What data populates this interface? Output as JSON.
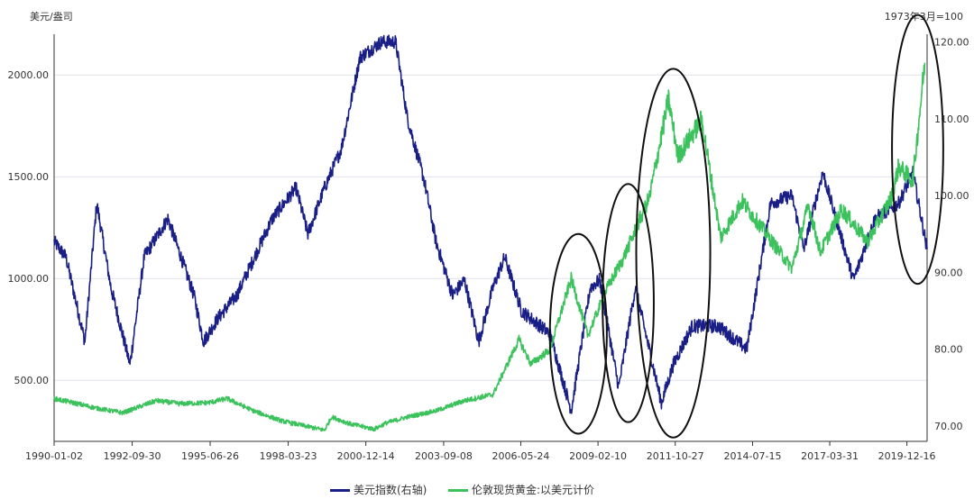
{
  "chart_data": {
    "type": "line",
    "left_axis_unit": "美元/盎司",
    "right_axis_unit": "1973年3月=100",
    "x_tick_labels": [
      "1990-01-02",
      "1992-09-30",
      "1995-06-26",
      "1998-03-23",
      "2000-12-14",
      "2003-09-08",
      "2006-05-24",
      "2009-02-10",
      "2011-10-27",
      "2014-07-15",
      "2017-03-31",
      "2019-12-16"
    ],
    "y_left_ticks": [
      "500.00",
      "1000.00",
      "1500.00",
      "2000.00"
    ],
    "y_left_range": [
      200,
      2200
    ],
    "y_right_ticks": [
      "70.00",
      "80.00",
      "90.00",
      "100.00",
      "110.00",
      "120.00"
    ],
    "y_right_range": [
      68,
      121
    ],
    "x_range": [
      "1990-01-02",
      "2020-09-01"
    ],
    "grid": "horizontal",
    "legend_position": "bottom",
    "series": [
      {
        "name": "美元指数(右轴)",
        "axis": "right",
        "color": "#1a1f87",
        "points": [
          [
            "1990-01-02",
            94
          ],
          [
            "1990-06-01",
            92
          ],
          [
            "1991-02-01",
            81
          ],
          [
            "1991-07-01",
            99
          ],
          [
            "1992-01-01",
            88
          ],
          [
            "1992-09-01",
            78
          ],
          [
            "1993-03-01",
            92
          ],
          [
            "1994-01-01",
            97
          ],
          [
            "1994-12-01",
            87
          ],
          [
            "1995-04-01",
            81
          ],
          [
            "1995-10-01",
            84
          ],
          [
            "1996-06-01",
            87
          ],
          [
            "1997-03-01",
            93
          ],
          [
            "1997-09-01",
            97
          ],
          [
            "1998-07-01",
            101
          ],
          [
            "1998-12-01",
            95
          ],
          [
            "1999-07-01",
            101
          ],
          [
            "2000-02-01",
            106
          ],
          [
            "2000-10-01",
            118
          ],
          [
            "2001-07-01",
            120
          ],
          [
            "2002-01-01",
            120
          ],
          [
            "2002-06-01",
            110
          ],
          [
            "2003-01-01",
            102
          ],
          [
            "2003-06-01",
            94
          ],
          [
            "2004-01-01",
            87
          ],
          [
            "2004-06-01",
            89
          ],
          [
            "2004-12-01",
            81
          ],
          [
            "2005-06-01",
            88
          ],
          [
            "2005-11-01",
            92
          ],
          [
            "2006-06-01",
            85
          ],
          [
            "2007-06-01",
            82
          ],
          [
            "2008-03-01",
            72
          ],
          [
            "2008-11-01",
            88
          ],
          [
            "2009-03-01",
            89
          ],
          [
            "2009-11-01",
            75
          ],
          [
            "2010-06-01",
            88
          ],
          [
            "2011-05-01",
            73
          ],
          [
            "2011-10-01",
            78
          ],
          [
            "2012-06-01",
            83
          ],
          [
            "2013-05-01",
            83
          ],
          [
            "2014-05-01",
            80
          ],
          [
            "2015-03-01",
            99
          ],
          [
            "2015-12-01",
            100
          ],
          [
            "2016-05-01",
            93
          ],
          [
            "2017-01-01",
            103
          ],
          [
            "2018-02-01",
            89
          ],
          [
            "2018-11-01",
            97
          ],
          [
            "2019-09-01",
            99
          ],
          [
            "2020-03-01",
            103
          ],
          [
            "2020-09-01",
            93
          ]
        ]
      },
      {
        "name": "伦敦现货黄金:以美元计价",
        "axis": "left",
        "color": "#3cc25c",
        "points": [
          [
            "1990-01-02",
            410
          ],
          [
            "1990-09-01",
            390
          ],
          [
            "1991-06-01",
            365
          ],
          [
            "1992-06-01",
            340
          ],
          [
            "1993-08-01",
            400
          ],
          [
            "1994-06-01",
            385
          ],
          [
            "1995-06-01",
            390
          ],
          [
            "1996-02-01",
            410
          ],
          [
            "1997-01-01",
            350
          ],
          [
            "1998-01-01",
            300
          ],
          [
            "1999-07-01",
            255
          ],
          [
            "1999-10-01",
            320
          ],
          [
            "2000-06-01",
            285
          ],
          [
            "2001-04-01",
            260
          ],
          [
            "2001-09-01",
            290
          ],
          [
            "2002-06-01",
            320
          ],
          [
            "2003-06-01",
            350
          ],
          [
            "2004-06-01",
            400
          ],
          [
            "2005-06-01",
            430
          ],
          [
            "2006-05-01",
            700
          ],
          [
            "2006-10-01",
            580
          ],
          [
            "2007-06-01",
            650
          ],
          [
            "2008-03-01",
            1000
          ],
          [
            "2008-10-01",
            720
          ],
          [
            "2009-06-01",
            950
          ],
          [
            "2010-01-01",
            1100
          ],
          [
            "2010-12-01",
            1400
          ],
          [
            "2011-08-01",
            1880
          ],
          [
            "2011-12-01",
            1600
          ],
          [
            "2012-10-01",
            1780
          ],
          [
            "2013-06-01",
            1200
          ],
          [
            "2014-03-01",
            1380
          ],
          [
            "2015-12-01",
            1050
          ],
          [
            "2016-07-01",
            1360
          ],
          [
            "2016-12-01",
            1130
          ],
          [
            "2017-09-01",
            1340
          ],
          [
            "2018-08-01",
            1180
          ],
          [
            "2019-06-01",
            1400
          ],
          [
            "2019-09-01",
            1550
          ],
          [
            "2020-03-01",
            1480
          ],
          [
            "2020-08-01",
            2060
          ]
        ]
      }
    ],
    "annotations": [
      {
        "type": "ellipse",
        "cx_date": "2008-06-01",
        "cx_value": 82,
        "rx_years": 1.0,
        "ry_value": 13
      },
      {
        "type": "ellipse",
        "cx_date": "2010-03-01",
        "cx_value": 86,
        "rx_years": 0.9,
        "ry_value": 15.5
      },
      {
        "type": "ellipse",
        "cx_date": "2011-10-01",
        "cx_value": 92.5,
        "rx_years": 1.3,
        "ry_value": 24
      },
      {
        "type": "ellipse",
        "cx_date": "2020-05-01",
        "cx_value": 106,
        "rx_years": 0.9,
        "ry_value": 17.5
      }
    ]
  }
}
